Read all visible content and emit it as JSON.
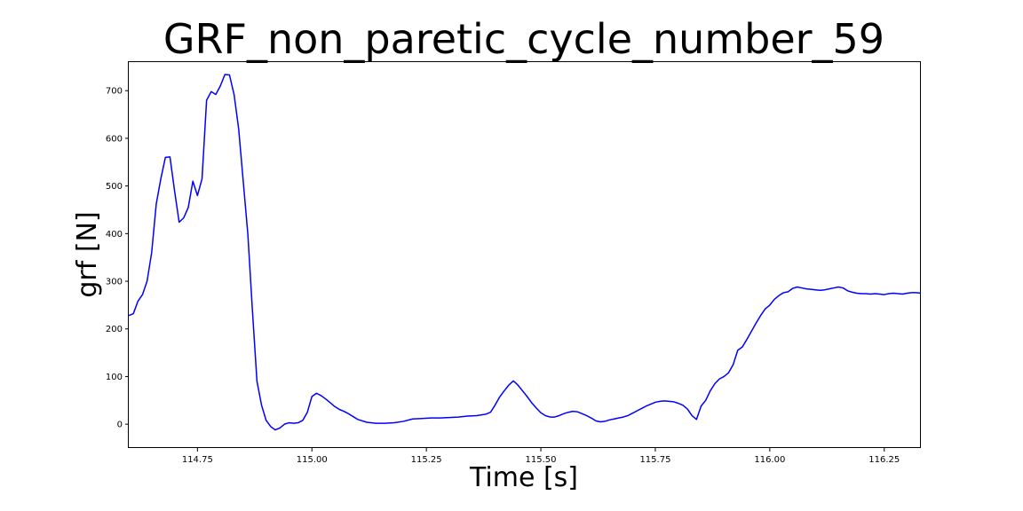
{
  "chart_data": {
    "type": "line",
    "title": "GRF_non_paretic_cycle_number_59",
    "xlabel": "Time [s]",
    "ylabel": "grf [N]",
    "xlim": [
      114.6,
      116.33
    ],
    "ylim": [
      -50,
      760
    ],
    "xticks": [
      114.75,
      115.0,
      115.25,
      115.5,
      115.75,
      116.0,
      116.25
    ],
    "xtick_labels": [
      "114.75",
      "115.00",
      "115.25",
      "115.50",
      "115.75",
      "116.00",
      "116.25"
    ],
    "yticks": [
      0,
      100,
      200,
      300,
      400,
      500,
      600,
      700
    ],
    "ytick_labels": [
      "0",
      "100",
      "200",
      "300",
      "400",
      "500",
      "600",
      "700"
    ],
    "grid": false,
    "series": [
      {
        "color": "#0000ff",
        "points": [
          [
            114.6,
            228
          ],
          [
            114.61,
            232
          ],
          [
            114.62,
            258
          ],
          [
            114.63,
            272
          ],
          [
            114.64,
            300
          ],
          [
            114.65,
            360
          ],
          [
            114.66,
            462
          ],
          [
            114.67,
            515
          ],
          [
            114.68,
            560
          ],
          [
            114.69,
            561
          ],
          [
            114.7,
            490
          ],
          [
            114.71,
            424
          ],
          [
            114.72,
            433
          ],
          [
            114.73,
            455
          ],
          [
            114.74,
            510
          ],
          [
            114.75,
            480
          ],
          [
            114.76,
            515
          ],
          [
            114.77,
            680
          ],
          [
            114.78,
            698
          ],
          [
            114.79,
            692
          ],
          [
            114.8,
            710
          ],
          [
            114.81,
            734
          ],
          [
            114.82,
            733
          ],
          [
            114.83,
            692
          ],
          [
            114.84,
            620
          ],
          [
            114.85,
            510
          ],
          [
            114.86,
            400
          ],
          [
            114.87,
            240
          ],
          [
            114.88,
            90
          ],
          [
            114.89,
            40
          ],
          [
            114.9,
            8
          ],
          [
            114.91,
            -5
          ],
          [
            114.92,
            -12
          ],
          [
            114.93,
            -8
          ],
          [
            114.94,
            0
          ],
          [
            114.95,
            3
          ],
          [
            114.96,
            2
          ],
          [
            114.97,
            3
          ],
          [
            114.98,
            8
          ],
          [
            114.99,
            25
          ],
          [
            115.0,
            58
          ],
          [
            115.01,
            65
          ],
          [
            115.02,
            60
          ],
          [
            115.03,
            53
          ],
          [
            115.04,
            45
          ],
          [
            115.05,
            37
          ],
          [
            115.06,
            31
          ],
          [
            115.07,
            27
          ],
          [
            115.08,
            22
          ],
          [
            115.09,
            16
          ],
          [
            115.1,
            10
          ],
          [
            115.12,
            4
          ],
          [
            115.14,
            2
          ],
          [
            115.16,
            2
          ],
          [
            115.18,
            3
          ],
          [
            115.2,
            6
          ],
          [
            115.22,
            11
          ],
          [
            115.24,
            12
          ],
          [
            115.26,
            13
          ],
          [
            115.28,
            13
          ],
          [
            115.3,
            14
          ],
          [
            115.32,
            15
          ],
          [
            115.34,
            17
          ],
          [
            115.36,
            18
          ],
          [
            115.38,
            21
          ],
          [
            115.39,
            25
          ],
          [
            115.4,
            40
          ],
          [
            115.41,
            57
          ],
          [
            115.42,
            70
          ],
          [
            115.43,
            82
          ],
          [
            115.44,
            91
          ],
          [
            115.45,
            82
          ],
          [
            115.46,
            70
          ],
          [
            115.47,
            58
          ],
          [
            115.48,
            45
          ],
          [
            115.49,
            34
          ],
          [
            115.5,
            24
          ],
          [
            115.51,
            18
          ],
          [
            115.52,
            15
          ],
          [
            115.53,
            15
          ],
          [
            115.54,
            18
          ],
          [
            115.55,
            22
          ],
          [
            115.56,
            25
          ],
          [
            115.57,
            27
          ],
          [
            115.58,
            26
          ],
          [
            115.59,
            22
          ],
          [
            115.6,
            18
          ],
          [
            115.61,
            13
          ],
          [
            115.62,
            7
          ],
          [
            115.63,
            5
          ],
          [
            115.64,
            6
          ],
          [
            115.65,
            9
          ],
          [
            115.66,
            11
          ],
          [
            115.67,
            13
          ],
          [
            115.68,
            15
          ],
          [
            115.69,
            18
          ],
          [
            115.7,
            23
          ],
          [
            115.71,
            28
          ],
          [
            115.72,
            33
          ],
          [
            115.73,
            38
          ],
          [
            115.74,
            42
          ],
          [
            115.75,
            46
          ],
          [
            115.76,
            48
          ],
          [
            115.77,
            49
          ],
          [
            115.78,
            48
          ],
          [
            115.79,
            47
          ],
          [
            115.8,
            44
          ],
          [
            115.81,
            40
          ],
          [
            115.82,
            32
          ],
          [
            115.83,
            18
          ],
          [
            115.84,
            10
          ],
          [
            115.85,
            38
          ],
          [
            115.86,
            50
          ],
          [
            115.87,
            70
          ],
          [
            115.88,
            85
          ],
          [
            115.89,
            95
          ],
          [
            115.9,
            100
          ],
          [
            115.91,
            108
          ],
          [
            115.92,
            125
          ],
          [
            115.93,
            155
          ],
          [
            115.94,
            162
          ],
          [
            115.95,
            178
          ],
          [
            115.96,
            195
          ],
          [
            115.97,
            212
          ],
          [
            115.98,
            228
          ],
          [
            115.99,
            242
          ],
          [
            116.0,
            250
          ],
          [
            116.01,
            262
          ],
          [
            116.02,
            270
          ],
          [
            116.03,
            276
          ],
          [
            116.04,
            278
          ],
          [
            116.05,
            285
          ],
          [
            116.06,
            288
          ],
          [
            116.07,
            286
          ],
          [
            116.08,
            284
          ],
          [
            116.09,
            283
          ],
          [
            116.1,
            282
          ],
          [
            116.11,
            281
          ],
          [
            116.12,
            282
          ],
          [
            116.13,
            284
          ],
          [
            116.14,
            286
          ],
          [
            116.15,
            288
          ],
          [
            116.16,
            286
          ],
          [
            116.17,
            280
          ],
          [
            116.18,
            277
          ],
          [
            116.19,
            275
          ],
          [
            116.2,
            274
          ],
          [
            116.21,
            274
          ],
          [
            116.22,
            273
          ],
          [
            116.23,
            274
          ],
          [
            116.24,
            273
          ],
          [
            116.25,
            272
          ],
          [
            116.26,
            274
          ],
          [
            116.27,
            275
          ],
          [
            116.28,
            274
          ],
          [
            116.29,
            273
          ],
          [
            116.3,
            275
          ],
          [
            116.31,
            276
          ],
          [
            116.32,
            276
          ],
          [
            116.33,
            275
          ]
        ]
      }
    ]
  }
}
